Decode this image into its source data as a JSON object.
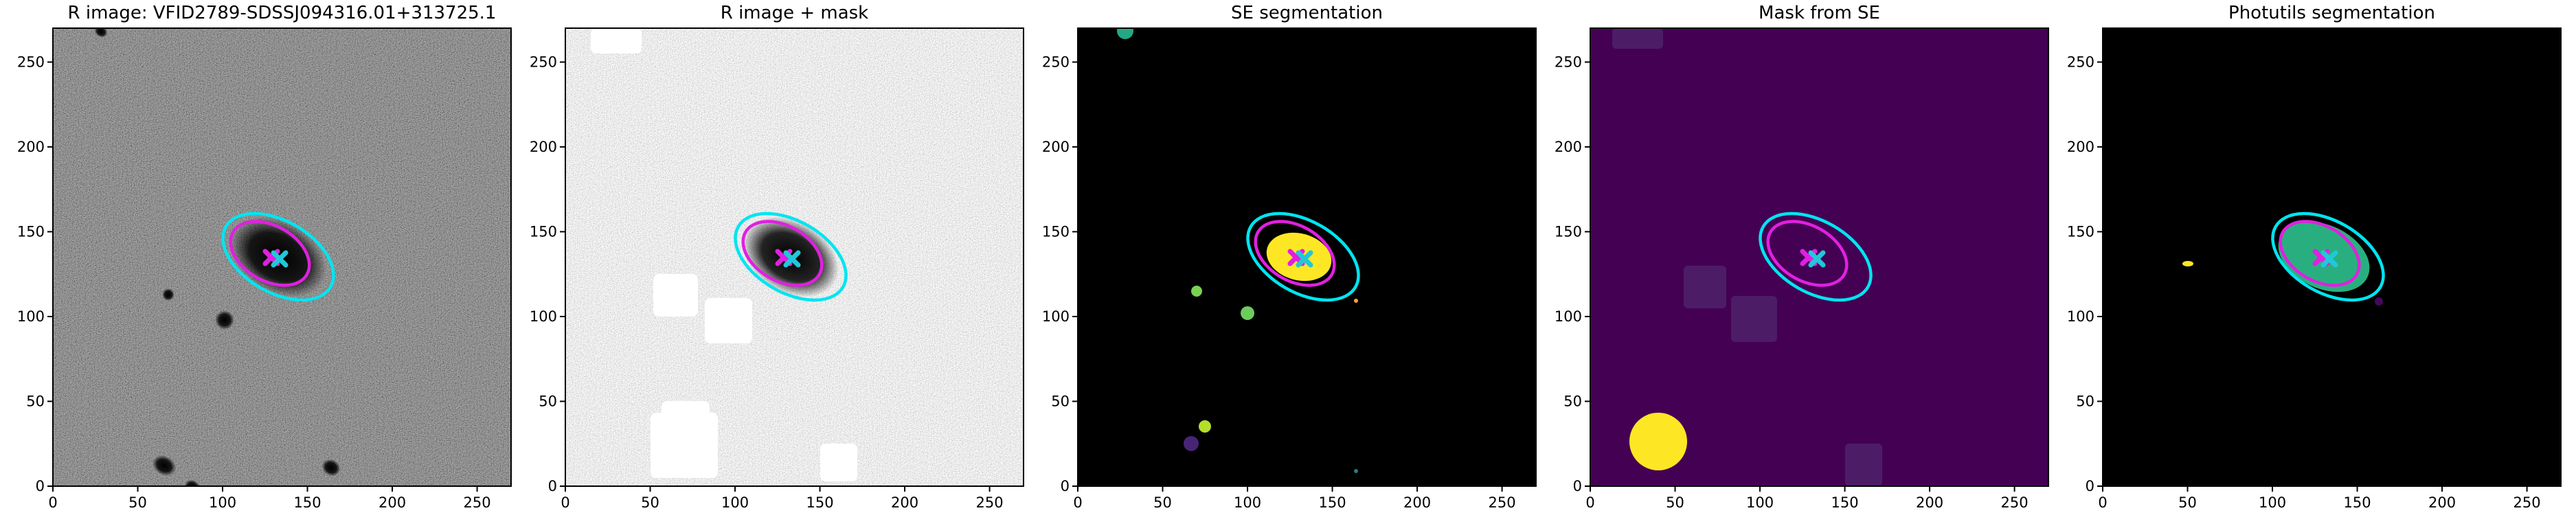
{
  "chart_data": [
    {
      "type": "image",
      "title": "R image: VFID2789-SDSSJ094316.01+313725.1",
      "xlim": [
        0,
        270
      ],
      "ylim": [
        0,
        270
      ],
      "xticks": [
        0,
        50,
        100,
        150,
        200,
        250
      ],
      "yticks": [
        0,
        50,
        100,
        150,
        200,
        250
      ]
    },
    {
      "type": "image",
      "title": "R image + mask",
      "xlim": [
        0,
        270
      ],
      "ylim": [
        0,
        270
      ],
      "xticks": [
        0,
        50,
        100,
        150,
        200,
        250
      ],
      "yticks": [
        0,
        50,
        100,
        150,
        200,
        250
      ]
    },
    {
      "type": "image",
      "title": "SE segmentation",
      "xlim": [
        0,
        270
      ],
      "ylim": [
        0,
        270
      ],
      "xticks": [
        0,
        50,
        100,
        150,
        200,
        250
      ],
      "yticks": [
        0,
        50,
        100,
        150,
        200,
        250
      ]
    },
    {
      "type": "image",
      "title": "Mask from SE",
      "xlim": [
        0,
        270
      ],
      "ylim": [
        0,
        270
      ],
      "xticks": [
        0,
        50,
        100,
        150,
        200,
        250
      ],
      "yticks": [
        0,
        50,
        100,
        150,
        200,
        250
      ]
    },
    {
      "type": "image",
      "title": "Photutils segmentation",
      "xlim": [
        0,
        270
      ],
      "ylim": [
        0,
        270
      ],
      "xticks": [
        0,
        50,
        100,
        150,
        200,
        250
      ],
      "yticks": [
        0,
        50,
        100,
        150,
        200,
        250
      ]
    }
  ]
}
